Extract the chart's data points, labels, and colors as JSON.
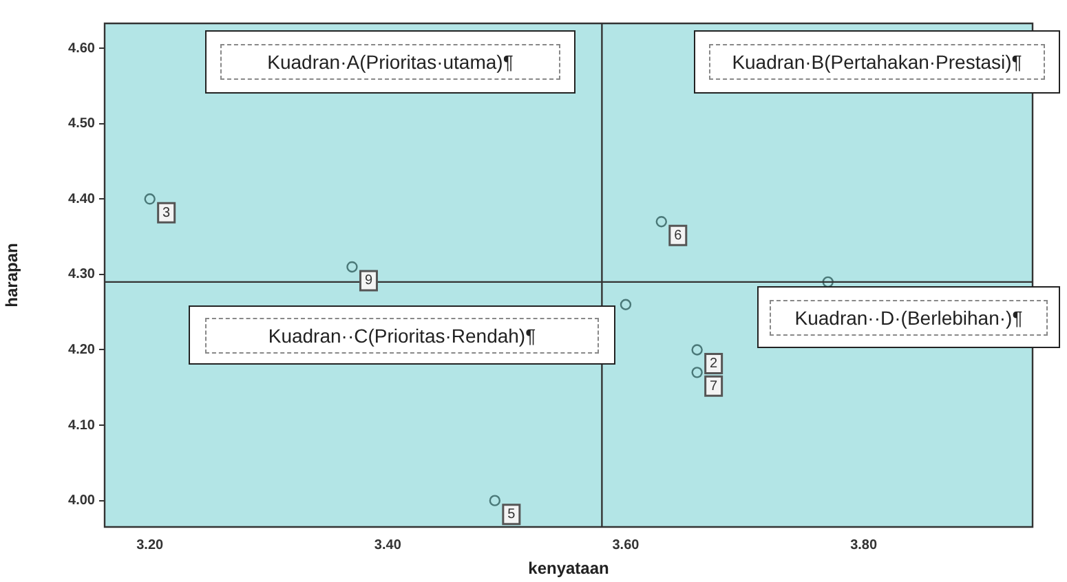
{
  "chart_data": {
    "type": "scatter",
    "xlabel": "kenyataan",
    "ylabel": "harapan",
    "x": [
      3.2,
      3.37,
      3.63,
      3.77,
      3.6,
      3.66,
      3.66,
      3.49
    ],
    "series": [
      {
        "color": "#4a7878",
        "values": [
          4.4,
          4.31,
          4.37,
          4.29,
          4.26,
          4.2,
          4.17,
          4.0
        ]
      }
    ],
    "xlim": [
      3.162,
      3.942
    ],
    "xticks": [
      {
        "value": 3.2,
        "label": "3.20"
      },
      {
        "value": 3.4,
        "label": "3.40"
      },
      {
        "value": 3.6,
        "label": "3.60"
      },
      {
        "value": 3.8,
        "label": "3.80"
      }
    ],
    "ylim": [
      3.965,
      4.633
    ],
    "yticks": [
      {
        "value": 4.0,
        "label": "4.00"
      },
      {
        "value": 4.1,
        "label": "4.10"
      },
      {
        "value": 4.2,
        "label": "4.20"
      },
      {
        "value": 4.3,
        "label": "4.30"
      },
      {
        "value": 4.4,
        "label": "4.40"
      },
      {
        "value": 4.5,
        "label": "4.50"
      },
      {
        "value": 4.6,
        "label": "4.60"
      }
    ],
    "ref_lines": [
      {
        "axis": "x",
        "value": 3.58,
        "color": "#333333"
      },
      {
        "axis": "y",
        "value": 4.29,
        "color": "#333333"
      }
    ],
    "marker": "circle",
    "grid": false,
    "legend": false,
    "annotations": [
      "Kuadran·A(Prioritas·utama)¶",
      "Kuadran·B(Pertahakan·Prestasi)¶",
      "Kuadran··C(Prioritas·Rendah)¶",
      "Kuadran··D·(Berlebihan·)¶",
      {
        "text": "3",
        "x": 3.2,
        "y": 4.4
      },
      {
        "text": "9",
        "x": 3.37,
        "y": 4.31
      },
      {
        "text": "6",
        "x": 3.63,
        "y": 4.37
      },
      {
        "text": "2",
        "x": 3.66,
        "y": 4.2
      },
      {
        "text": "7",
        "x": 3.66,
        "y": 4.17
      },
      {
        "text": "5",
        "x": 3.49,
        "y": 4.0
      }
    ]
  }
}
